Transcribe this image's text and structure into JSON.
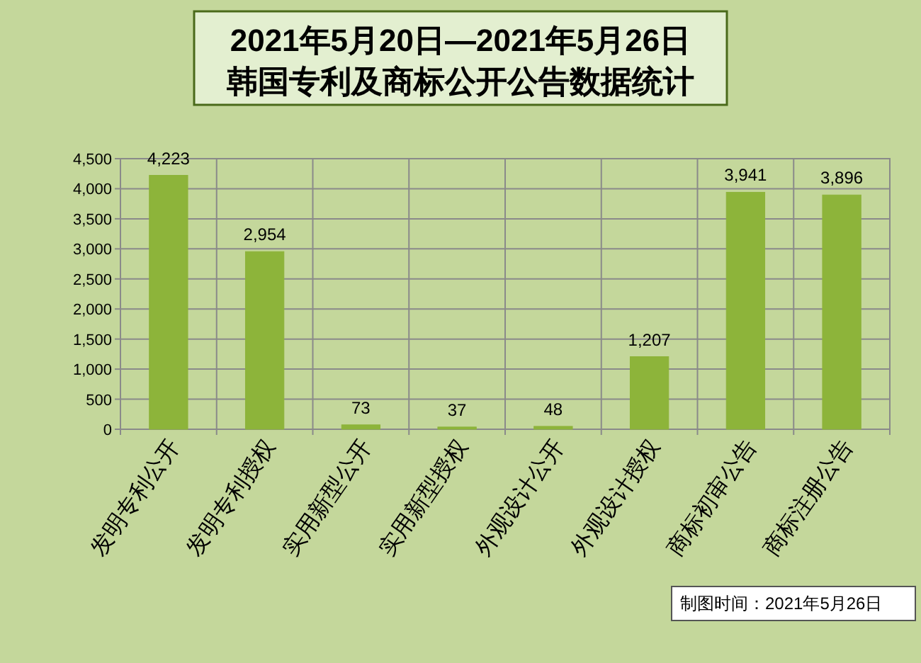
{
  "chart_data": {
    "type": "bar",
    "title": "2021年5月20日—2021年5月26日",
    "subtitle": "韩国专利及商标公开公告数据统计",
    "categories": [
      "发明专利公开",
      "发明专利授权",
      "实用新型公开",
      "实用新型授权",
      "外观设计公开",
      "外观设计授权",
      "商标初审公告",
      "商标注册公告"
    ],
    "values": [
      4223,
      2954,
      73,
      37,
      48,
      1207,
      3941,
      3896
    ],
    "value_labels": [
      "4,223",
      "2,954",
      "73",
      "37",
      "48",
      "1,207",
      "3,941",
      "3,896"
    ],
    "color": "#8db43a",
    "ylim": [
      0,
      4500
    ],
    "yticks": [
      {
        "value": 0,
        "label": "0"
      },
      {
        "value": 500,
        "label": "500"
      },
      {
        "value": 1000,
        "label": "1,000"
      },
      {
        "value": 1500,
        "label": "1,500"
      },
      {
        "value": 2000,
        "label": "2,000"
      },
      {
        "value": 2500,
        "label": "2,500"
      },
      {
        "value": 3000,
        "label": "3,000"
      },
      {
        "value": 3500,
        "label": "3,500"
      },
      {
        "value": 4000,
        "label": "4,000"
      },
      {
        "value": 4500,
        "label": "4,500"
      }
    ],
    "grid": true,
    "annotations": [
      "制图时间：2021年5月26日"
    ]
  }
}
